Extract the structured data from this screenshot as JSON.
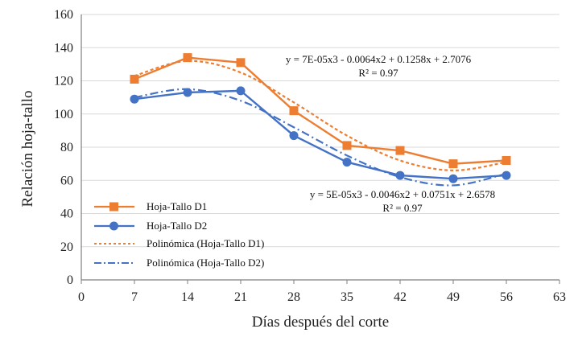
{
  "chart_data": {
    "type": "line",
    "title": "",
    "xlabel": "Días después del corte",
    "ylabel": "Relación hoja-tallo",
    "xlim": [
      0,
      63
    ],
    "ylim": [
      0,
      160
    ],
    "xticks": [
      0,
      7,
      14,
      21,
      28,
      35,
      42,
      49,
      56,
      63
    ],
    "yticks": [
      0,
      20,
      40,
      60,
      80,
      100,
      120,
      140,
      160
    ],
    "x": [
      7,
      14,
      21,
      28,
      35,
      42,
      49,
      56
    ],
    "series": [
      {
        "name": "Hoja-Tallo D1",
        "values": [
          121,
          134,
          131,
          102,
          81,
          78,
          70,
          72
        ],
        "color": "#ED7D31",
        "marker": "square"
      },
      {
        "name": "Hoja-Tallo D2",
        "values": [
          109,
          113,
          114,
          87,
          71,
          63,
          61,
          63
        ],
        "color": "#4472C4",
        "marker": "circle"
      }
    ],
    "trendlines": [
      {
        "name": "Polinómica (Hoja-Tallo D1)",
        "color": "#ED7D31",
        "dash": "dotted",
        "values": [
          123,
          132,
          125,
          107,
          87,
          72,
          66,
          71
        ]
      },
      {
        "name": "Polinómica (Hoja-Tallo D2)",
        "color": "#4472C4",
        "dash": "dashdot",
        "values": [
          110,
          115,
          108,
          92,
          75,
          62,
          57,
          64
        ]
      }
    ],
    "annotations": [
      {
        "equation": "y = 7E-05x3 - 0.0064x2 + 0.1258x + 2.7076",
        "r2": "R² = 0.97"
      },
      {
        "equation": "y = 5E-05x3 - 0.0046x2 + 0.0751x + 2.6578",
        "r2": "R² = 0.97"
      }
    ],
    "legend_position": "bottom-left"
  }
}
